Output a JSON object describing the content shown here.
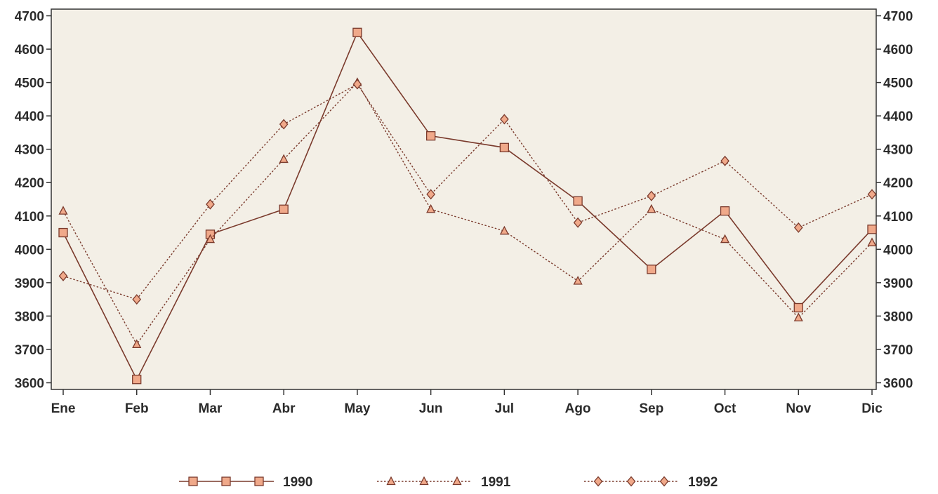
{
  "chart_data": {
    "type": "line",
    "title": "",
    "xlabel": "",
    "ylabel": "",
    "categories": [
      "Ene",
      "Feb",
      "Mar",
      "Abr",
      "May",
      "Jun",
      "Jul",
      "Ago",
      "Sep",
      "Oct",
      "Nov",
      "Dic"
    ],
    "ylim": [
      3580,
      4720
    ],
    "yticks": [
      3600,
      3700,
      3800,
      3900,
      4000,
      4100,
      4200,
      4300,
      4400,
      4500,
      4600,
      4700
    ],
    "ytick_labels": [
      "3600",
      "3700",
      "3800",
      "3900",
      "4000",
      "4100",
      "4200",
      "4300",
      "4400",
      "4500",
      "4600",
      "4700"
    ],
    "grid": false,
    "axis_on_both_sides": true,
    "legend_position": "bottom",
    "series": [
      {
        "name": "1990",
        "marker": "square",
        "line": "solid",
        "values": [
          4050,
          3610,
          4045,
          4120,
          4650,
          4340,
          4305,
          4145,
          3940,
          4115,
          3825,
          4060
        ]
      },
      {
        "name": "1991",
        "marker": "triangle",
        "line": "dotted",
        "values": [
          4115,
          3715,
          4030,
          4270,
          4500,
          4120,
          4055,
          3905,
          4120,
          4030,
          3795,
          4020
        ]
      },
      {
        "name": "1992",
        "marker": "diamond",
        "line": "dotted",
        "values": [
          3920,
          3850,
          4135,
          4375,
          4495,
          4165,
          4390,
          4080,
          4160,
          4265,
          4065,
          4165
        ]
      }
    ],
    "colors": {
      "plot_background": "#f3efe6",
      "line": "#7a3a2c",
      "marker_fill": "#f0a98a",
      "marker_stroke": "#7a3a2c",
      "axis": "#333333"
    }
  }
}
